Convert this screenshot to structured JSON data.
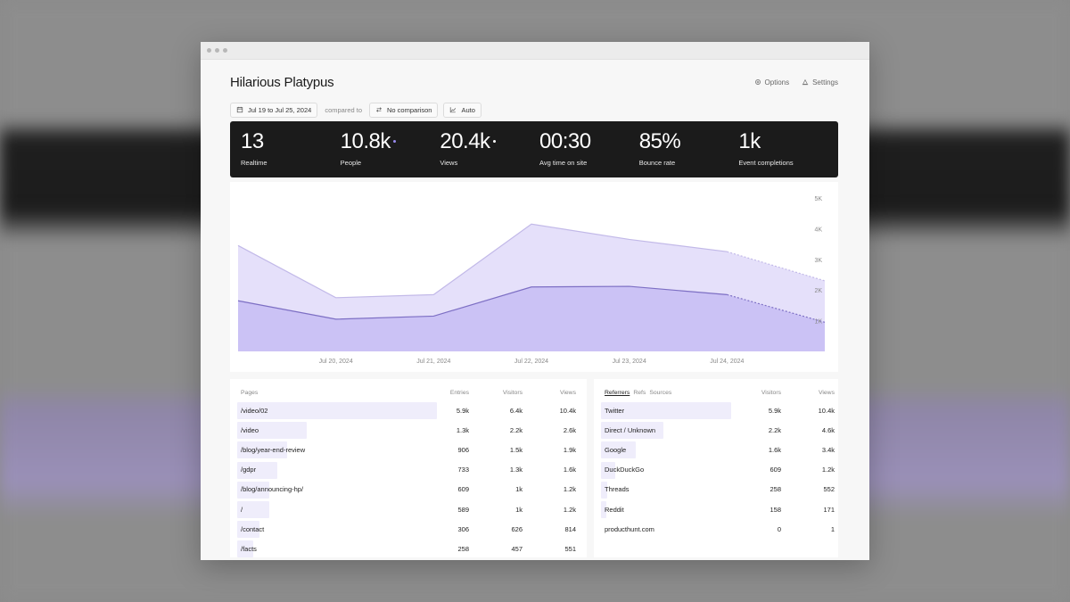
{
  "app": {
    "title": "Hilarious Platypus",
    "options_label": "Options",
    "settings_label": "Settings"
  },
  "filters": {
    "date_range": "Jul 19 to Jul 25, 2024",
    "compared_to": "compared to",
    "comparison": "No comparison",
    "interval": "Auto"
  },
  "stats": [
    {
      "value": "13",
      "label": "Realtime"
    },
    {
      "value": "10.8k",
      "label": "People"
    },
    {
      "value": "20.4k",
      "label": "Views"
    },
    {
      "value": "00:30",
      "label": "Avg time on site"
    },
    {
      "value": "85%",
      "label": "Bounce rate"
    },
    {
      "value": "1k",
      "label": "Event completions"
    }
  ],
  "chart_data": {
    "type": "area",
    "x": [
      "Jul 19, 2024",
      "Jul 20, 2024",
      "Jul 21, 2024",
      "Jul 22, 2024",
      "Jul 23, 2024",
      "Jul 24, 2024",
      "Jul 25, 2024"
    ],
    "x_tick_labels": [
      "Jul 20, 2024",
      "Jul 21, 2024",
      "Jul 22, 2024",
      "Jul 23, 2024",
      "Jul 24, 2024"
    ],
    "y_tick_labels": [
      "5K",
      "4K",
      "3K",
      "2K",
      "1K"
    ],
    "ylim": [
      0,
      5000
    ],
    "series": [
      {
        "values": [
          3450,
          1750,
          1850,
          4150,
          3650,
          3250,
          2300
        ],
        "color": "#e5e0fa"
      },
      {
        "values": [
          1650,
          1050,
          1150,
          2100,
          2120,
          1850,
          950
        ],
        "color": "#cbc2f5"
      }
    ],
    "last_segment_dashed": true
  },
  "pages_table": {
    "headers": {
      "name": "Pages",
      "entries": "Entries",
      "visitors": "Visitors",
      "views": "Views"
    },
    "rows": [
      {
        "name": "/video/02",
        "entries": "5.9k",
        "visitors": "6.4k",
        "views": "10.4k",
        "share": 1.0
      },
      {
        "name": "/video",
        "entries": "1.3k",
        "visitors": "2.2k",
        "views": "2.6k",
        "share": 0.35
      },
      {
        "name": "/blog/year-end-review",
        "entries": "906",
        "visitors": "1.5k",
        "views": "1.9k",
        "share": 0.25
      },
      {
        "name": "/gdpr",
        "entries": "733",
        "visitors": "1.3k",
        "views": "1.6k",
        "share": 0.2
      },
      {
        "name": "/blog/announcing-hp/",
        "entries": "609",
        "visitors": "1k",
        "views": "1.2k",
        "share": 0.16
      },
      {
        "name": "/",
        "entries": "589",
        "visitors": "1k",
        "views": "1.2k",
        "share": 0.16
      },
      {
        "name": "/contact",
        "entries": "306",
        "visitors": "626",
        "views": "814",
        "share": 0.11
      },
      {
        "name": "/facts",
        "entries": "258",
        "visitors": "457",
        "views": "551",
        "share": 0.08
      }
    ]
  },
  "referrers_table": {
    "tabs": [
      "Referrers",
      "Refs",
      "Sources"
    ],
    "headers": {
      "visitors": "Visitors",
      "views": "Views"
    },
    "rows": [
      {
        "name": "Twitter",
        "visitors": "5.9k",
        "views": "10.4k",
        "share": 1.0
      },
      {
        "name": "Direct / Unknown",
        "visitors": "2.2k",
        "views": "4.6k",
        "share": 0.48
      },
      {
        "name": "Google",
        "visitors": "1.6k",
        "views": "3.4k",
        "share": 0.27
      },
      {
        "name": "DuckDuckGo",
        "visitors": "609",
        "views": "1.2k",
        "share": 0.11
      },
      {
        "name": "Threads",
        "visitors": "258",
        "views": "552",
        "share": 0.05
      },
      {
        "name": "Reddit",
        "visitors": "158",
        "views": "171",
        "share": 0.03
      },
      {
        "name": "producthunt.com",
        "visitors": "0",
        "views": "1",
        "share": 0.0
      }
    ]
  }
}
